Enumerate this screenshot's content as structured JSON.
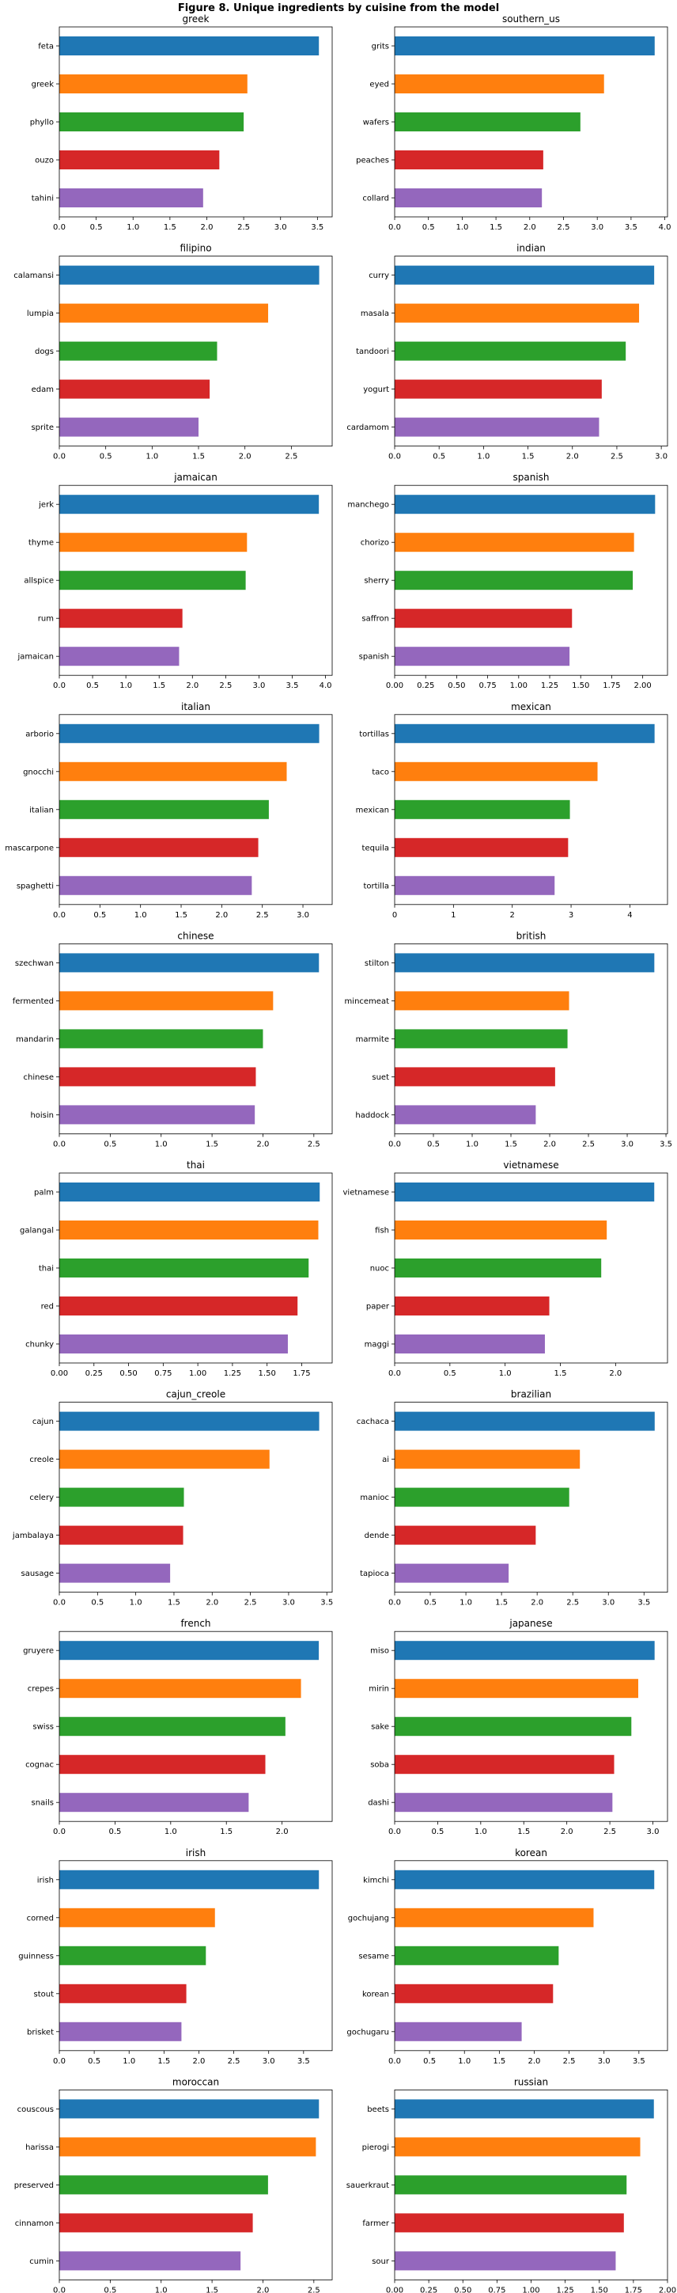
{
  "figure_title": "Figure 8. Unique ingredients by cuisine from the model",
  "colors": [
    "#1f77b4",
    "#ff7f0e",
    "#2ca02c",
    "#d62728",
    "#9467bd"
  ],
  "chart_data": [
    {
      "type": "bar",
      "orientation": "horizontal",
      "title": "greek",
      "categories": [
        "feta",
        "greek",
        "phyllo",
        "ouzo",
        "tahini"
      ],
      "values": [
        3.52,
        2.55,
        2.5,
        2.17,
        1.95
      ],
      "xlim": [
        0,
        3.7
      ],
      "xticks": [
        0,
        0.5,
        1.0,
        1.5,
        2.0,
        2.5,
        3.0,
        3.5
      ],
      "xtick_labels": [
        "0.0",
        "0.5",
        "1.0",
        "1.5",
        "2.0",
        "2.5",
        "3.0",
        "3.5"
      ]
    },
    {
      "type": "bar",
      "orientation": "horizontal",
      "title": "southern_us",
      "categories": [
        "grits",
        "eyed",
        "wafers",
        "peaches",
        "collard"
      ],
      "values": [
        3.85,
        3.1,
        2.75,
        2.2,
        2.18
      ],
      "xlim": [
        0,
        4.04
      ],
      "xticks": [
        0,
        0.5,
        1.0,
        1.5,
        2.0,
        2.5,
        3.0,
        3.5,
        4.0
      ],
      "xtick_labels": [
        "0.0",
        "0.5",
        "1.0",
        "1.5",
        "2.0",
        "2.5",
        "3.0",
        "3.5",
        "4.0"
      ]
    },
    {
      "type": "bar",
      "orientation": "horizontal",
      "title": "filipino",
      "categories": [
        "calamansi",
        "lumpia",
        "dogs",
        "edam",
        "sprite"
      ],
      "values": [
        2.8,
        2.25,
        1.7,
        1.62,
        1.5
      ],
      "xlim": [
        0,
        2.94
      ],
      "xticks": [
        0,
        0.5,
        1.0,
        1.5,
        2.0,
        2.5
      ],
      "xtick_labels": [
        "0.0",
        "0.5",
        "1.0",
        "1.5",
        "2.0",
        "2.5"
      ]
    },
    {
      "type": "bar",
      "orientation": "horizontal",
      "title": "indian",
      "categories": [
        "curry",
        "masala",
        "tandoori",
        "yogurt",
        "cardamom"
      ],
      "values": [
        2.92,
        2.75,
        2.6,
        2.33,
        2.3
      ],
      "xlim": [
        0,
        3.07
      ],
      "xticks": [
        0,
        0.5,
        1.0,
        1.5,
        2.0,
        2.5,
        3.0
      ],
      "xtick_labels": [
        "0.0",
        "0.5",
        "1.0",
        "1.5",
        "2.0",
        "2.5",
        "3.0"
      ]
    },
    {
      "type": "bar",
      "orientation": "horizontal",
      "title": "jamaican",
      "categories": [
        "jerk",
        "thyme",
        "allspice",
        "rum",
        "jamaican"
      ],
      "values": [
        3.9,
        2.82,
        2.8,
        1.85,
        1.8
      ],
      "xlim": [
        0,
        4.1
      ],
      "xticks": [
        0,
        0.5,
        1.0,
        1.5,
        2.0,
        2.5,
        3.0,
        3.5,
        4.0
      ],
      "xtick_labels": [
        "0.0",
        "0.5",
        "1.0",
        "1.5",
        "2.0",
        "2.5",
        "3.0",
        "3.5",
        "4.0"
      ]
    },
    {
      "type": "bar",
      "orientation": "horizontal",
      "title": "spanish",
      "categories": [
        "manchego",
        "chorizo",
        "sherry",
        "saffron",
        "spanish"
      ],
      "values": [
        2.1,
        1.93,
        1.92,
        1.43,
        1.41
      ],
      "xlim": [
        0,
        2.2
      ],
      "xticks": [
        0,
        0.25,
        0.5,
        0.75,
        1.0,
        1.25,
        1.5,
        1.75,
        2.0
      ],
      "xtick_labels": [
        "0.00",
        "0.25",
        "0.50",
        "0.75",
        "1.00",
        "1.25",
        "1.50",
        "1.75",
        "2.00"
      ]
    },
    {
      "type": "bar",
      "orientation": "horizontal",
      "title": "italian",
      "categories": [
        "arborio",
        "gnocchi",
        "italian",
        "mascarpone",
        "spaghetti"
      ],
      "values": [
        3.2,
        2.8,
        2.58,
        2.45,
        2.37
      ],
      "xlim": [
        0,
        3.36
      ],
      "xticks": [
        0,
        0.5,
        1.0,
        1.5,
        2.0,
        2.5,
        3.0
      ],
      "xtick_labels": [
        "0.0",
        "0.5",
        "1.0",
        "1.5",
        "2.0",
        "2.5",
        "3.0"
      ]
    },
    {
      "type": "bar",
      "orientation": "horizontal",
      "title": "mexican",
      "categories": [
        "tortillas",
        "taco",
        "mexican",
        "tequila",
        "tortilla"
      ],
      "values": [
        4.42,
        3.45,
        2.98,
        2.95,
        2.72
      ],
      "xlim": [
        0,
        4.64
      ],
      "xticks": [
        0,
        1,
        2,
        3,
        4
      ],
      "xtick_labels": [
        "0",
        "1",
        "2",
        "3",
        "4"
      ]
    },
    {
      "type": "bar",
      "orientation": "horizontal",
      "title": "chinese",
      "categories": [
        "szechwan",
        "fermented",
        "mandarin",
        "chinese",
        "hoisin"
      ],
      "values": [
        2.55,
        2.1,
        2.0,
        1.93,
        1.92
      ],
      "xlim": [
        0,
        2.68
      ],
      "xticks": [
        0,
        0.5,
        1.0,
        1.5,
        2.0,
        2.5
      ],
      "xtick_labels": [
        "0.0",
        "0.5",
        "1.0",
        "1.5",
        "2.0",
        "2.5"
      ]
    },
    {
      "type": "bar",
      "orientation": "horizontal",
      "title": "british",
      "categories": [
        "stilton",
        "mincemeat",
        "marmite",
        "suet",
        "haddock"
      ],
      "values": [
        3.35,
        2.25,
        2.23,
        2.07,
        1.82
      ],
      "xlim": [
        0,
        3.52
      ],
      "xticks": [
        0,
        0.5,
        1.0,
        1.5,
        2.0,
        2.5,
        3.0,
        3.5
      ],
      "xtick_labels": [
        "0.0",
        "0.5",
        "1.0",
        "1.5",
        "2.0",
        "2.5",
        "3.0",
        "3.5"
      ]
    },
    {
      "type": "bar",
      "orientation": "horizontal",
      "title": "thai",
      "categories": [
        "palm",
        "galangal",
        "thai",
        "red",
        "chunky"
      ],
      "values": [
        1.88,
        1.87,
        1.8,
        1.72,
        1.65
      ],
      "xlim": [
        0,
        1.97
      ],
      "xticks": [
        0,
        0.25,
        0.5,
        0.75,
        1.0,
        1.25,
        1.5,
        1.75
      ],
      "xtick_labels": [
        "0.00",
        "0.25",
        "0.50",
        "0.75",
        "1.00",
        "1.25",
        "1.50",
        "1.75"
      ]
    },
    {
      "type": "bar",
      "orientation": "horizontal",
      "title": "vietnamese",
      "categories": [
        "vietnamese",
        "fish",
        "nuoc",
        "paper",
        "maggi"
      ],
      "values": [
        2.35,
        1.92,
        1.87,
        1.4,
        1.36
      ],
      "xlim": [
        0,
        2.47
      ],
      "xticks": [
        0,
        0.5,
        1.0,
        1.5,
        2.0
      ],
      "xtick_labels": [
        "0.0",
        "0.5",
        "1.0",
        "1.5",
        "2.0"
      ]
    },
    {
      "type": "bar",
      "orientation": "horizontal",
      "title": "cajun_creole",
      "categories": [
        "cajun",
        "creole",
        "celery",
        "jambalaya",
        "sausage"
      ],
      "values": [
        3.4,
        2.75,
        1.63,
        1.62,
        1.45
      ],
      "xlim": [
        0,
        3.57
      ],
      "xticks": [
        0,
        0.5,
        1.0,
        1.5,
        2.0,
        2.5,
        3.0,
        3.5
      ],
      "xtick_labels": [
        "0.0",
        "0.5",
        "1.0",
        "1.5",
        "2.0",
        "2.5",
        "3.0",
        "3.5"
      ]
    },
    {
      "type": "bar",
      "orientation": "horizontal",
      "title": "brazilian",
      "categories": [
        "cachaca",
        "ai",
        "manioc",
        "dende",
        "tapioca"
      ],
      "values": [
        3.65,
        2.6,
        2.45,
        1.98,
        1.6
      ],
      "xlim": [
        0,
        3.83
      ],
      "xticks": [
        0,
        0.5,
        1.0,
        1.5,
        2.0,
        2.5,
        3.0,
        3.5
      ],
      "xtick_labels": [
        "0.0",
        "0.5",
        "1.0",
        "1.5",
        "2.0",
        "2.5",
        "3.0",
        "3.5"
      ]
    },
    {
      "type": "bar",
      "orientation": "horizontal",
      "title": "french",
      "categories": [
        "gruyere",
        "crepes",
        "swiss",
        "cognac",
        "snails"
      ],
      "values": [
        2.33,
        2.17,
        2.03,
        1.85,
        1.7
      ],
      "xlim": [
        0,
        2.45
      ],
      "xticks": [
        0,
        0.5,
        1.0,
        1.5,
        2.0
      ],
      "xtick_labels": [
        "0.0",
        "0.5",
        "1.0",
        "1.5",
        "2.0"
      ]
    },
    {
      "type": "bar",
      "orientation": "horizontal",
      "title": "japanese",
      "categories": [
        "miso",
        "mirin",
        "sake",
        "soba",
        "dashi"
      ],
      "values": [
        3.02,
        2.83,
        2.75,
        2.55,
        2.53
      ],
      "xlim": [
        0,
        3.17
      ],
      "xticks": [
        0,
        0.5,
        1.0,
        1.5,
        2.0,
        2.5,
        3.0
      ],
      "xtick_labels": [
        "0.0",
        "0.5",
        "1.0",
        "1.5",
        "2.0",
        "2.5",
        "3.0"
      ]
    },
    {
      "type": "bar",
      "orientation": "horizontal",
      "title": "irish",
      "categories": [
        "irish",
        "corned",
        "guinness",
        "stout",
        "brisket"
      ],
      "values": [
        3.72,
        2.23,
        2.1,
        1.82,
        1.75
      ],
      "xlim": [
        0,
        3.91
      ],
      "xticks": [
        0,
        0.5,
        1.0,
        1.5,
        2.0,
        2.5,
        3.0,
        3.5
      ],
      "xtick_labels": [
        "0.0",
        "0.5",
        "1.0",
        "1.5",
        "2.0",
        "2.5",
        "3.0",
        "3.5"
      ]
    },
    {
      "type": "bar",
      "orientation": "horizontal",
      "title": "korean",
      "categories": [
        "kimchi",
        "gochujang",
        "sesame",
        "korean",
        "gochugaru"
      ],
      "values": [
        3.72,
        2.85,
        2.35,
        2.27,
        1.82
      ],
      "xlim": [
        0,
        3.91
      ],
      "xticks": [
        0,
        0.5,
        1.0,
        1.5,
        2.0,
        2.5,
        3.0,
        3.5
      ],
      "xtick_labels": [
        "0.0",
        "0.5",
        "1.0",
        "1.5",
        "2.0",
        "2.5",
        "3.0",
        "3.5"
      ]
    },
    {
      "type": "bar",
      "orientation": "horizontal",
      "title": "moroccan",
      "categories": [
        "couscous",
        "harissa",
        "preserved",
        "cinnamon",
        "cumin"
      ],
      "values": [
        2.55,
        2.52,
        2.05,
        1.9,
        1.78
      ],
      "xlim": [
        0,
        2.68
      ],
      "xticks": [
        0,
        0.5,
        1.0,
        1.5,
        2.0,
        2.5
      ],
      "xtick_labels": [
        "0.0",
        "0.5",
        "1.0",
        "1.5",
        "2.0",
        "2.5"
      ]
    },
    {
      "type": "bar",
      "orientation": "horizontal",
      "title": "russian",
      "categories": [
        "beets",
        "pierogi",
        "sauerkraut",
        "farmer",
        "sour"
      ],
      "values": [
        1.9,
        1.8,
        1.7,
        1.68,
        1.62
      ],
      "xlim": [
        0,
        2.0
      ],
      "xticks": [
        0,
        0.25,
        0.5,
        0.75,
        1.0,
        1.25,
        1.5,
        1.75,
        2.0
      ],
      "xtick_labels": [
        "0.00",
        "0.25",
        "0.50",
        "0.75",
        "1.00",
        "1.25",
        "1.50",
        "1.75",
        "2.00"
      ]
    }
  ]
}
